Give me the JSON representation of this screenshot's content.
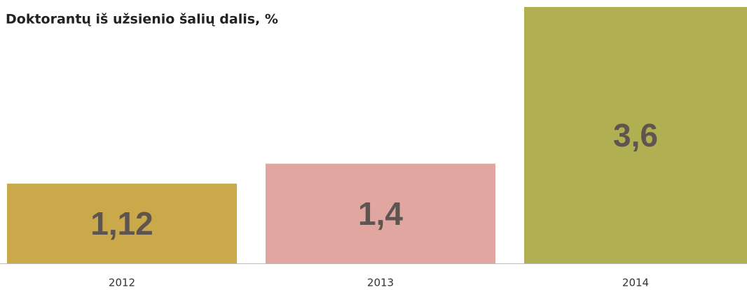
{
  "chart_data": {
    "type": "bar",
    "title": "Doktorantų iš užsienio šalių dalis, %",
    "categories": [
      "2012",
      "2013",
      "2014"
    ],
    "values": [
      1.12,
      1.4,
      3.6
    ],
    "value_labels": [
      "1,12",
      "1,4",
      "3,6"
    ],
    "colors": [
      "#c9a94a",
      "#e0a69f",
      "#b0b052"
    ]
  }
}
